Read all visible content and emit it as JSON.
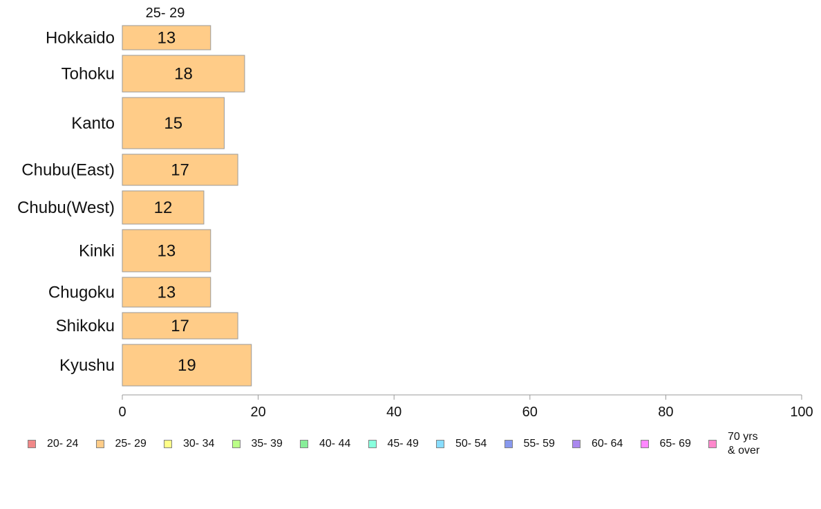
{
  "chart_data": {
    "type": "bar",
    "orientation": "horizontal",
    "categories": [
      "Hokkaido",
      "Tohoku",
      "Kanto",
      "Chubu(East)",
      "Chubu(West)",
      "Kinki",
      "Chugoku",
      "Shikoku",
      "Kyushu"
    ],
    "series": [
      {
        "name": "25- 29",
        "values": [
          13,
          18,
          15,
          17,
          12,
          13,
          13,
          17,
          19
        ],
        "color": "#ffcc88"
      }
    ],
    "column_header": "25- 29",
    "xlim": [
      0,
      100
    ],
    "x_ticks": [
      0,
      20,
      40,
      60,
      80,
      100
    ],
    "grid": false,
    "legend_position": "bottom",
    "legend": [
      {
        "label": "20- 24",
        "color": "#f08888"
      },
      {
        "label": "25- 29",
        "color": "#ffcc88"
      },
      {
        "label": "30- 34",
        "color": "#ffff88"
      },
      {
        "label": "35- 39",
        "color": "#bbff88"
      },
      {
        "label": "40- 44",
        "color": "#88ee99"
      },
      {
        "label": "45- 49",
        "color": "#88ffdd"
      },
      {
        "label": "50- 54",
        "color": "#88ddff"
      },
      {
        "label": "55- 59",
        "color": "#8899ee"
      },
      {
        "label": "60- 64",
        "color": "#aa88ee"
      },
      {
        "label": "65- 69",
        "color": "#ff88ff"
      },
      {
        "label": "70 yrs\n& over",
        "color": "#ff88cc"
      }
    ]
  }
}
